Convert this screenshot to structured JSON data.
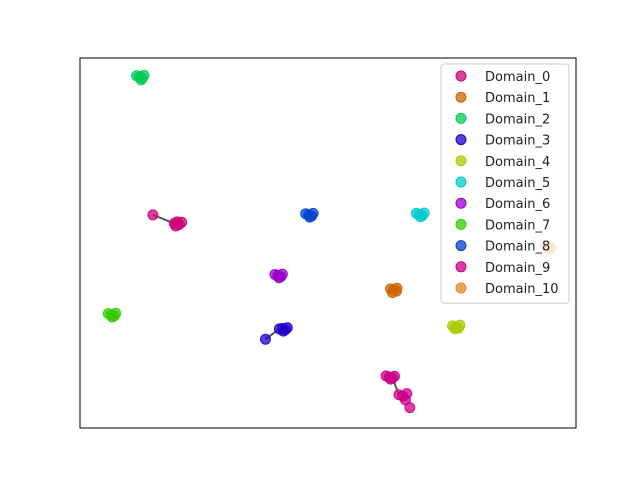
{
  "chart_data": {
    "type": "scatter",
    "title": "",
    "xlabel": "",
    "ylabel": "",
    "xlim": [
      0,
      100
    ],
    "ylim": [
      0,
      100
    ],
    "axis_ticks": false,
    "grid": false,
    "legend_position": "upper right",
    "series": [
      {
        "name": "Domain_0",
        "color": "#cc0077",
        "points": [
          [
            19.6,
            55.7
          ],
          [
            20.0,
            55.0
          ],
          [
            19.0,
            55.3
          ],
          [
            20.5,
            55.6
          ],
          [
            19.3,
            54.6
          ],
          [
            14.7,
            57.6
          ]
        ]
      },
      {
        "name": "Domain_1",
        "color": "#cc6600",
        "points": [
          [
            63.2,
            37.3
          ],
          [
            63.8,
            37.0
          ],
          [
            62.6,
            37.6
          ],
          [
            63.0,
            36.6
          ],
          [
            63.9,
            37.8
          ]
        ]
      },
      {
        "name": "Domain_2",
        "color": "#00cc55",
        "points": [
          [
            12.0,
            94.9
          ],
          [
            12.6,
            94.6
          ],
          [
            11.4,
            95.2
          ],
          [
            12.3,
            94.1
          ],
          [
            12.9,
            95.3
          ]
        ]
      },
      {
        "name": "Domain_3",
        "color": "#2200cc",
        "points": [
          [
            40.8,
            26.9
          ],
          [
            41.4,
            26.6
          ],
          [
            40.2,
            26.8
          ],
          [
            41.0,
            26.2
          ],
          [
            41.8,
            27.1
          ],
          [
            37.4,
            24.0
          ]
        ]
      },
      {
        "name": "Domain_4",
        "color": "#aacc00",
        "points": [
          [
            75.7,
            27.3
          ],
          [
            76.3,
            27.0
          ],
          [
            75.1,
            27.6
          ],
          [
            75.6,
            26.8
          ],
          [
            76.6,
            27.8
          ]
        ]
      },
      {
        "name": "Domain_5",
        "color": "#00cccc",
        "points": [
          [
            68.4,
            57.7
          ],
          [
            69.0,
            57.4
          ],
          [
            67.8,
            58.0
          ],
          [
            68.6,
            57.1
          ],
          [
            69.4,
            58.1
          ]
        ]
      },
      {
        "name": "Domain_6",
        "color": "#9900cc",
        "points": [
          [
            39.9,
            41.2
          ],
          [
            40.5,
            40.9
          ],
          [
            39.3,
            41.5
          ],
          [
            40.1,
            40.6
          ],
          [
            40.8,
            41.6
          ]
        ]
      },
      {
        "name": "Domain_7",
        "color": "#33cc00",
        "points": [
          [
            6.3,
            30.6
          ],
          [
            6.9,
            30.3
          ],
          [
            5.7,
            30.9
          ],
          [
            6.5,
            30.0
          ],
          [
            7.2,
            31.0
          ]
        ]
      },
      {
        "name": "Domain_8",
        "color": "#0044cc",
        "points": [
          [
            46.1,
            57.6
          ],
          [
            46.7,
            57.3
          ],
          [
            45.5,
            57.9
          ],
          [
            46.3,
            57.0
          ],
          [
            47.0,
            58.0
          ]
        ]
      },
      {
        "name": "Domain_9",
        "color": "#cc0088",
        "points": [
          [
            62.3,
            13.8
          ],
          [
            63.0,
            13.5
          ],
          [
            61.7,
            14.1
          ],
          [
            62.6,
            13.2
          ],
          [
            63.4,
            14.0
          ],
          [
            64.3,
            9.0
          ],
          [
            65.1,
            8.6
          ],
          [
            65.9,
            9.3
          ],
          [
            65.6,
            7.6
          ],
          [
            66.5,
            5.5
          ]
        ]
      },
      {
        "name": "Domain_10",
        "color": "#dd8822",
        "points": [
          [
            94.3,
            49.0
          ],
          [
            95.0,
            48.7
          ],
          [
            93.8,
            49.3
          ],
          [
            94.6,
            48.4
          ]
        ]
      }
    ],
    "connectors": [
      {
        "from": [
          14.7,
          57.6
        ],
        "to": [
          19.0,
          55.3
        ]
      },
      {
        "from": [
          37.4,
          24.0
        ],
        "to": [
          40.2,
          26.8
        ]
      },
      {
        "from": [
          63.0,
          13.5
        ],
        "to": [
          64.3,
          9.0
        ]
      }
    ]
  }
}
